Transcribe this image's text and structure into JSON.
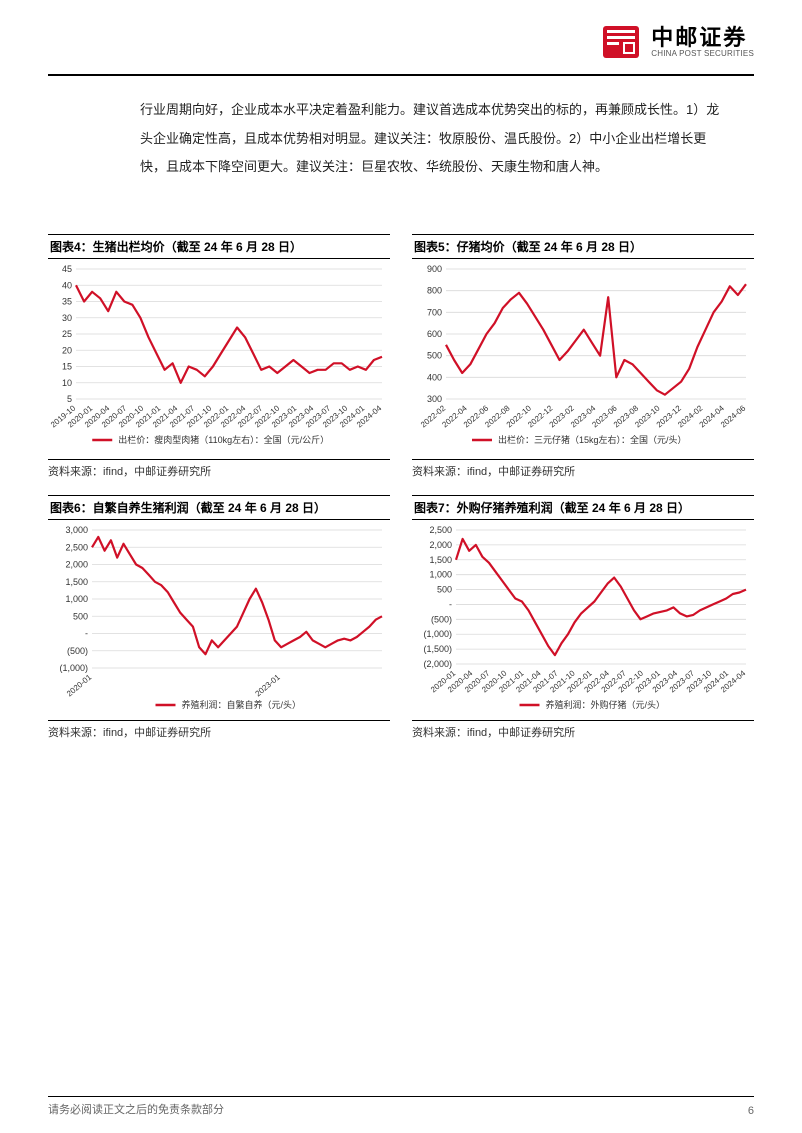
{
  "header": {
    "brand_cn": "中邮证券",
    "brand_en": "CHINA POST SECURITIES",
    "logo_color": "#d01027"
  },
  "body_text": "行业周期向好，企业成本水平决定着盈利能力。建议首选成本优势突出的标的，再兼顾成长性。1）龙头企业确定性高，且成本优势相对明显。建议关注：牧原股份、温氏股份。2）中小企业出栏增长更快，且成本下降空间更大。建议关注：巨星农牧、华统股份、天康生物和唐人神。",
  "charts": {
    "c4": {
      "type": "line",
      "title": "图表4：生猪出栏均价（截至 24 年 6 月 28 日）",
      "legend": "出栏价：瘦肉型肉猪（110kg左右）：全国（元/公斤）",
      "legend_color": "#d01027",
      "source_label": "资料来源：ifind，中邮证券研究所",
      "line_color": "#d01027",
      "line_width": 2.2,
      "grid_color": "#d9d9d9",
      "bg_color": "#ffffff",
      "ylim": [
        5,
        45
      ],
      "ytick_step": 5,
      "yticks": [
        5,
        10,
        15,
        20,
        25,
        30,
        35,
        40,
        45
      ],
      "xticks": [
        "2019-10",
        "2020-01",
        "2020-04",
        "2020-07",
        "2020-10",
        "2021-01",
        "2021-04",
        "2021-07",
        "2021-10",
        "2022-01",
        "2022-04",
        "2022-07",
        "2022-10",
        "2023-01",
        "2023-04",
        "2023-07",
        "2023-10",
        "2024-01",
        "2024-04"
      ],
      "values": [
        40,
        35,
        38,
        36,
        32,
        38,
        35,
        34,
        30,
        24,
        19,
        14,
        16,
        10,
        15,
        14,
        12,
        15,
        19,
        23,
        27,
        24,
        19,
        14,
        15,
        13,
        15,
        17,
        15,
        13,
        14,
        14,
        16,
        16,
        14,
        15,
        14,
        17,
        18
      ]
    },
    "c5": {
      "type": "line",
      "title": "图表5：仔猪均价（截至 24 年 6 月 28 日）",
      "legend": "出栏价：三元仔猪（15kg左右）：全国（元/头）",
      "legend_color": "#d01027",
      "source_label": "资料来源：ifind，中邮证券研究所",
      "line_color": "#d01027",
      "line_width": 2.2,
      "grid_color": "#d9d9d9",
      "bg_color": "#ffffff",
      "ylim": [
        300,
        900
      ],
      "ytick_step": 100,
      "yticks": [
        300,
        400,
        500,
        600,
        700,
        800,
        900
      ],
      "xticks": [
        "2022-02",
        "2022-04",
        "2022-06",
        "2022-08",
        "2022-10",
        "2022-12",
        "2023-02",
        "2023-04",
        "2023-06",
        "2023-08",
        "2023-10",
        "2023-12",
        "2024-02",
        "2024-04",
        "2024-06"
      ],
      "values": [
        550,
        480,
        420,
        460,
        530,
        600,
        650,
        720,
        760,
        790,
        740,
        680,
        620,
        550,
        480,
        520,
        570,
        620,
        560,
        500,
        770,
        400,
        480,
        460,
        420,
        380,
        340,
        320,
        350,
        380,
        440,
        540,
        620,
        700,
        750,
        820,
        780,
        830
      ]
    },
    "c6": {
      "type": "line",
      "title": "图表6：自繁自养生猪利润（截至 24 年 6 月 28 日）",
      "legend": "养殖利润：自繁自养（元/头）",
      "legend_color": "#d01027",
      "source_label": "资料来源：ifind，中邮证券研究所",
      "line_color": "#d01027",
      "line_width": 2.2,
      "grid_color": "#d9d9d9",
      "bg_color": "#ffffff",
      "ylim": [
        -1000,
        3000
      ],
      "ytick_step": 500,
      "yticks": [
        -1000,
        -500,
        0,
        500,
        1000,
        1500,
        2000,
        2500,
        3000
      ],
      "ytick_labels": [
        "(1,000)",
        "(500)",
        "-",
        "500",
        "1,000",
        "1,500",
        "2,000",
        "2,500",
        "3,000"
      ],
      "xticks": [
        "2020-01",
        "2023-01"
      ],
      "xtick_positions": [
        0.0,
        0.65
      ],
      "values": [
        2500,
        2800,
        2400,
        2700,
        2200,
        2600,
        2300,
        2000,
        1900,
        1700,
        1500,
        1400,
        1200,
        900,
        600,
        400,
        200,
        -400,
        -600,
        -200,
        -400,
        -200,
        0,
        200,
        600,
        1000,
        1300,
        900,
        400,
        -200,
        -400,
        -300,
        -200,
        -100,
        50,
        -200,
        -300,
        -400,
        -300,
        -200,
        -150,
        -200,
        -100,
        50,
        200,
        400,
        500
      ]
    },
    "c7": {
      "type": "line",
      "title": "图表7：外购仔猪养殖利润（截至 24 年 6 月 28 日）",
      "legend": "养殖利润：外购仔猪（元/头）",
      "legend_color": "#d01027",
      "source_label": "资料来源：ifind，中邮证券研究所",
      "line_color": "#d01027",
      "line_width": 2.2,
      "grid_color": "#d9d9d9",
      "bg_color": "#ffffff",
      "ylim": [
        -2000,
        2500
      ],
      "ytick_step": 500,
      "yticks": [
        -2000,
        -1500,
        -1000,
        -500,
        0,
        500,
        1000,
        1500,
        2000,
        2500
      ],
      "ytick_labels": [
        "(2,000)",
        "(1,500)",
        "(1,000)",
        "(500)",
        "-",
        "500",
        "1,000",
        "1,500",
        "2,000",
        "2,500"
      ],
      "xticks": [
        "2020-01",
        "2020-04",
        "2020-07",
        "2020-10",
        "2021-01",
        "2021-04",
        "2021-07",
        "2021-10",
        "2022-01",
        "2022-04",
        "2022-07",
        "2022-10",
        "2023-01",
        "2023-04",
        "2023-07",
        "2023-10",
        "2024-01",
        "2024-04"
      ],
      "values": [
        1500,
        2200,
        1800,
        2000,
        1600,
        1400,
        1100,
        800,
        500,
        200,
        100,
        -200,
        -600,
        -1000,
        -1400,
        -1700,
        -1300,
        -1000,
        -600,
        -300,
        -100,
        100,
        400,
        700,
        900,
        600,
        200,
        -200,
        -500,
        -400,
        -300,
        -250,
        -200,
        -100,
        -300,
        -400,
        -350,
        -200,
        -100,
        0,
        100,
        200,
        350,
        400,
        500
      ]
    }
  },
  "footer": {
    "disclaimer": "请务必阅读正文之后的免责条款部分",
    "page_number": "6"
  }
}
